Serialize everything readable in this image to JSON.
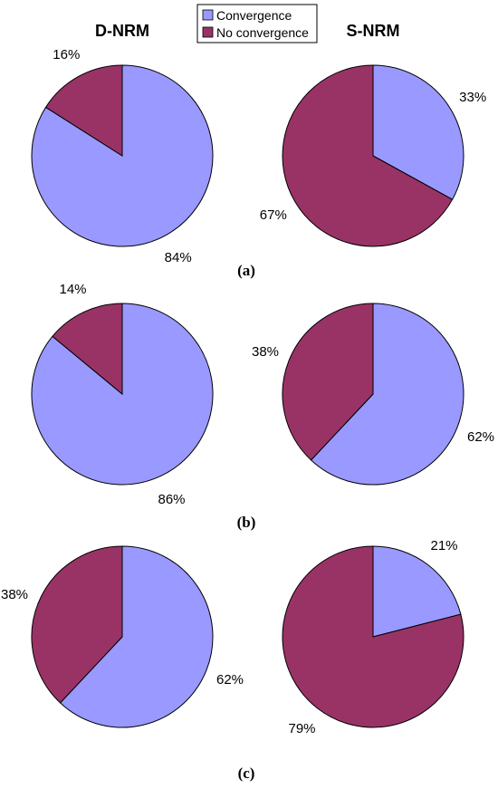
{
  "colors": {
    "convergence": "#9999ff",
    "no_convergence": "#993366"
  },
  "legend": {
    "convergence": "Convergence",
    "no_convergence": "No convergence"
  },
  "column_titles": {
    "left": "D-NRM",
    "right": "S-NRM"
  },
  "chart_data": [
    {
      "type": "pie",
      "panel": "(a)",
      "method": "D-NRM",
      "series": [
        {
          "name": "Convergence",
          "value": 84,
          "label": "84%"
        },
        {
          "name": "No convergence",
          "value": 16,
          "label": "16%"
        }
      ]
    },
    {
      "type": "pie",
      "panel": "(a)",
      "method": "S-NRM",
      "series": [
        {
          "name": "Convergence",
          "value": 33,
          "label": "33%"
        },
        {
          "name": "No convergence",
          "value": 67,
          "label": "67%"
        }
      ]
    },
    {
      "type": "pie",
      "panel": "(b)",
      "method": "D-NRM",
      "series": [
        {
          "name": "Convergence",
          "value": 86,
          "label": "86%"
        },
        {
          "name": "No convergence",
          "value": 14,
          "label": "14%"
        }
      ]
    },
    {
      "type": "pie",
      "panel": "(b)",
      "method": "S-NRM",
      "series": [
        {
          "name": "Convergence",
          "value": 62,
          "label": "62%"
        },
        {
          "name": "No convergence",
          "value": 38,
          "label": "38%"
        }
      ]
    },
    {
      "type": "pie",
      "panel": "(c)",
      "method": "D-NRM",
      "series": [
        {
          "name": "Convergence",
          "value": 62,
          "label": "62%"
        },
        {
          "name": "No convergence",
          "value": 38,
          "label": "38%"
        }
      ]
    },
    {
      "type": "pie",
      "panel": "(c)",
      "method": "S-NRM",
      "series": [
        {
          "name": "Convergence",
          "value": 21,
          "label": "21%"
        },
        {
          "name": "No convergence",
          "value": 79,
          "label": "79%"
        }
      ]
    }
  ],
  "panel_labels": [
    "(a)",
    "(b)",
    "(c)"
  ]
}
